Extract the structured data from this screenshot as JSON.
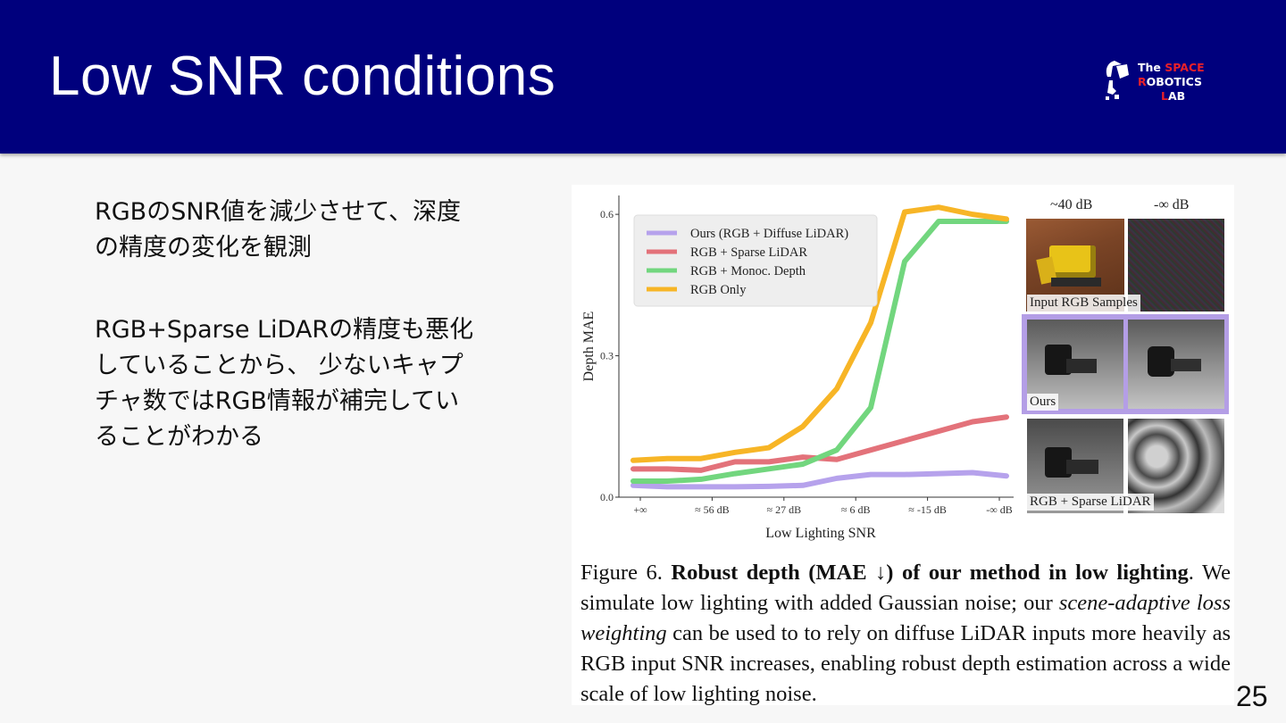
{
  "slide": {
    "title": "Low SNR conditions",
    "page_number": "25",
    "logo": {
      "line1_a": "The ",
      "line1_b": "SPACE",
      "line2_a": "R",
      "line2_b": "OBOTICS",
      "line3_a": "L",
      "line3_b": "AB"
    },
    "paragraph1": [
      "RGBのSNR値を減少させて、深度",
      "の精度の変化を観測"
    ],
    "paragraph2": [
      "RGB+Sparse LiDARの精度も悪化",
      "していることから、 少ないキャプ",
      "チャ数ではRGB情報が補完してい",
      "ることがわかる"
    ]
  },
  "figure": {
    "image_labels": {
      "col1": "~40 dB",
      "col2": "-∞ dB",
      "row1": "Input RGB Samples",
      "row2": "Ours",
      "row3": "RGB + Sparse LiDAR"
    },
    "caption": {
      "label": "Figure 6.",
      "bold": "Robust depth (MAE ↓) of our method in low lighting",
      "text_a": "We simulate low lighting with added Gaussian noise; our ",
      "italic": "scene-adaptive loss weighting",
      "text_b": " can be used to to rely on diffuse LiDAR inputs more heavily as RGB input SNR increases, enabling robust depth estimation across a wide scale of low lighting noise."
    }
  },
  "chart_data": {
    "type": "line",
    "xlabel": "Low Lighting SNR",
    "ylabel": "Depth MAE",
    "x_ticks": [
      "+∞",
      "≈ 56 dB",
      "≈ 27 dB",
      "≈ 6 dB",
      "≈ -15 dB",
      "-∞ dB"
    ],
    "y_ticks": [
      "0.0",
      "0.3",
      "0.6"
    ],
    "ylim": [
      0,
      0.64
    ],
    "n_points": 12,
    "legend_position": "top-left",
    "series": [
      {
        "name": "Ours (RGB + Diffuse LiDAR)",
        "color": "#b6a2ec",
        "values": [
          0.025,
          0.022,
          0.022,
          0.022,
          0.023,
          0.025,
          0.04,
          0.048,
          0.048,
          0.05,
          0.052,
          0.045
        ]
      },
      {
        "name": "RGB + Sparse LiDAR",
        "color": "#e3727a",
        "values": [
          0.06,
          0.06,
          0.057,
          0.075,
          0.075,
          0.085,
          0.08,
          0.1,
          0.12,
          0.14,
          0.16,
          0.17
        ]
      },
      {
        "name": "RGB + Monoc. Depth",
        "color": "#72d67e",
        "values": [
          0.034,
          0.034,
          0.038,
          0.05,
          0.06,
          0.07,
          0.1,
          0.19,
          0.5,
          0.585,
          0.585,
          0.585
        ]
      },
      {
        "name": "RGB Only",
        "color": "#f7b526",
        "values": [
          0.078,
          0.082,
          0.082,
          0.095,
          0.105,
          0.15,
          0.23,
          0.37,
          0.605,
          0.615,
          0.6,
          0.59
        ]
      }
    ]
  }
}
